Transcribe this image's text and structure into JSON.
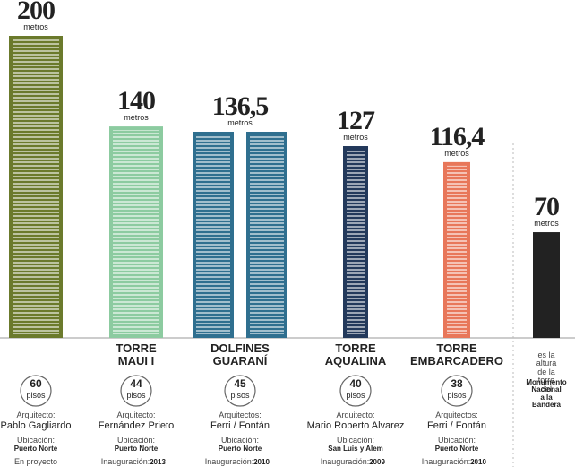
{
  "chart_data": {
    "type": "bar",
    "categories": [
      null,
      "TORRE\nMAUI I",
      "DOLFINES\nGUARANÍ",
      "TORRE\nAQUALINA",
      "TORRE\nEMBARCADERO",
      null
    ],
    "values": [
      200,
      140,
      136.5,
      127,
      116.4,
      70
    ],
    "value_labels": [
      "200",
      "140",
      "136,5",
      "127",
      "116,4",
      "70"
    ],
    "unit": "metros",
    "colors": [
      "#6b7a2c",
      "#8ccba0",
      "#2f6f8f",
      "#23395b",
      "#e8775a",
      "#222222"
    ],
    "floors_unit": "pisos",
    "details": [
      {
        "floors": 60,
        "architect_label": "Arquitecto:",
        "architect": "Pablo Gagliardo",
        "location_label": "Ubicación:",
        "location": "Puerto Norte",
        "status": "En proyecto"
      },
      {
        "floors": 44,
        "architect_label": "Arquitecto:",
        "architect": "Fernández Prieto",
        "location_label": "Ubicación:",
        "location": "Puerto Norte",
        "inauguration_label": "Inauguración:",
        "inauguration": "2013"
      },
      {
        "floors": 45,
        "architect_label": "Arquitectos:",
        "architect": "Ferri / Fontán",
        "location_label": "Ubicación:",
        "location": "Puerto Norte",
        "inauguration_label": "Inauguración:",
        "inauguration": "2010"
      },
      {
        "floors": 40,
        "architect_label": "Arquitecto:",
        "architect": "Mario Roberto Alvarez",
        "location_label": "Ubicación:",
        "location": "San Luis y Alem",
        "inauguration_label": "Inauguración:",
        "inauguration": "2009"
      },
      {
        "floors": 38,
        "architect_label": "Arquitectos:",
        "architect": "Ferri / Fontán",
        "location_label": "Ubicación:",
        "location": "Puerto Norte",
        "inauguration_label": "Inauguración:",
        "inauguration": "2010"
      }
    ],
    "note": "es la altura\nde la torre\ndel",
    "note_bold": "Monumento\nNacional\na la Bandera"
  }
}
